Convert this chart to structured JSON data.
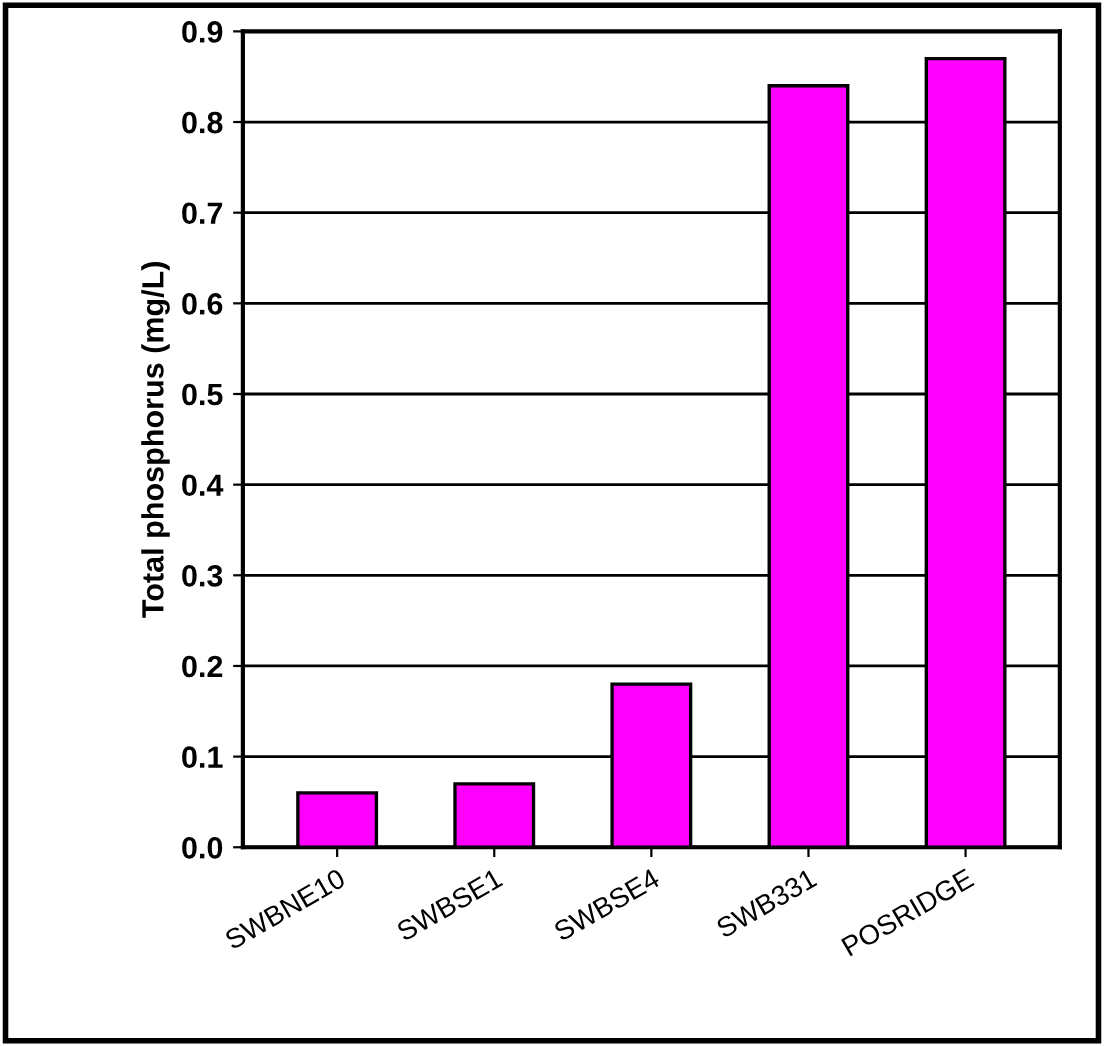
{
  "chart_data": {
    "type": "bar",
    "ylabel": "Total phosphorus (mg/L)",
    "categories": [
      "SWBNE10",
      "SWBSE1",
      "SWBSE4",
      "SWB331",
      "POSRIDGE"
    ],
    "values": [
      0.06,
      0.07,
      0.18,
      0.84,
      0.87
    ],
    "color": "#ff00ff",
    "ylim": [
      0,
      0.9
    ],
    "yticks": [
      {
        "value": 0,
        "label": "0.0"
      },
      0.1,
      0.2,
      0.3,
      0.4,
      0.5,
      0.6,
      0.7,
      0.8,
      0.9
    ],
    "grid": "y"
  }
}
